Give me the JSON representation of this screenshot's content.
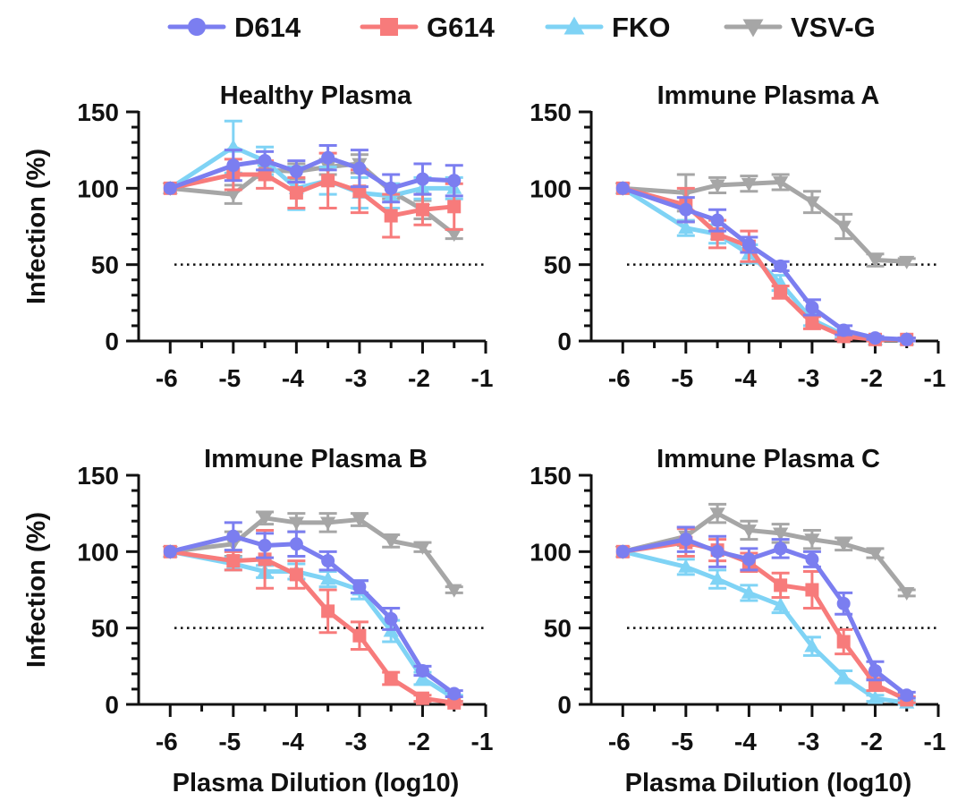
{
  "legend": [
    {
      "name": "D614",
      "color": "#7b7ef0",
      "marker": "circle"
    },
    {
      "name": "G614",
      "color": "#f77b7b",
      "marker": "square"
    },
    {
      "name": "FKO",
      "color": "#7fd3f5",
      "marker": "triangle-up"
    },
    {
      "name": "VSV-G",
      "color": "#a6a6a6",
      "marker": "triangle-down"
    }
  ],
  "colors": {
    "D614": "#7b7ef0",
    "G614": "#f77b7b",
    "FKO": "#7fd3f5",
    "VSV-G": "#a6a6a6",
    "axis": "#111111"
  },
  "chart_data": [
    {
      "type": "line",
      "title": "Healthy Plasma",
      "xlabel": "",
      "ylabel": "Infection (%)",
      "xlim": [
        -6.5,
        -1
      ],
      "ylim": [
        0,
        150
      ],
      "xticks": [
        -6,
        -5,
        -4,
        -3,
        -2,
        -1
      ],
      "yticks": [
        0,
        50,
        100,
        150
      ],
      "reference_line": 50,
      "x": [
        -6,
        -5,
        -4.5,
        -4,
        -3.5,
        -3,
        -2.5,
        -2,
        -1.5
      ],
      "series": [
        {
          "name": "D614",
          "values": [
            100,
            115,
            118,
            111,
            120,
            113,
            100,
            106,
            105
          ],
          "error": [
            0,
            10,
            6,
            7,
            8,
            12,
            9,
            10,
            10
          ]
        },
        {
          "name": "G614",
          "values": [
            100,
            109,
            109,
            97,
            105,
            98,
            82,
            86,
            88
          ],
          "error": [
            0,
            10,
            9,
            10,
            18,
            14,
            14,
            10,
            15
          ]
        },
        {
          "name": "FKO",
          "values": [
            100,
            127,
            118,
            100,
            105,
            97,
            95,
            100,
            100
          ],
          "error": [
            0,
            17,
            9,
            14,
            9,
            10,
            8,
            7,
            7
          ]
        },
        {
          "name": "VSV-G",
          "values": [
            100,
            96,
            112,
            111,
            114,
            116,
            98,
            86,
            70
          ],
          "error": [
            0,
            6,
            5,
            5,
            5,
            6,
            5,
            6,
            3
          ]
        }
      ]
    },
    {
      "type": "line",
      "title": "Immune Plasma A",
      "xlabel": "",
      "ylabel": "",
      "xlim": [
        -6.5,
        -1
      ],
      "ylim": [
        0,
        150
      ],
      "xticks": [
        -6,
        -5,
        -4,
        -3,
        -2,
        -1
      ],
      "yticks": [
        0,
        50,
        100,
        150
      ],
      "reference_line": 50,
      "x": [
        -6,
        -5,
        -4.5,
        -4,
        -3.5,
        -3,
        -2.5,
        -2,
        -1.5
      ],
      "series": [
        {
          "name": "D614",
          "values": [
            100,
            86,
            79,
            63,
            49,
            22,
            7,
            2,
            1
          ],
          "error": [
            0,
            8,
            7,
            5,
            3,
            5,
            3,
            1,
            1
          ]
        },
        {
          "name": "G614",
          "values": [
            100,
            89,
            70,
            62,
            32,
            12,
            3,
            1,
            1
          ],
          "error": [
            0,
            11,
            9,
            10,
            4,
            4,
            2,
            1,
            1
          ]
        },
        {
          "name": "FKO",
          "values": [
            100,
            74,
            70,
            57,
            38,
            14,
            4,
            1,
            1
          ],
          "error": [
            0,
            5,
            6,
            6,
            5,
            4,
            2,
            1,
            1
          ]
        },
        {
          "name": "VSV-G",
          "values": [
            100,
            97,
            102,
            103,
            104,
            91,
            75,
            53,
            52
          ],
          "error": [
            0,
            12,
            5,
            5,
            5,
            7,
            8,
            4,
            2
          ]
        }
      ]
    },
    {
      "type": "line",
      "title": "Immune Plasma B",
      "xlabel": "Plasma Dilution (log10)",
      "ylabel": "Infection (%)",
      "xlim": [
        -6.5,
        -1
      ],
      "ylim": [
        0,
        150
      ],
      "xticks": [
        -6,
        -5,
        -4,
        -3,
        -2,
        -1
      ],
      "yticks": [
        0,
        50,
        100,
        150
      ],
      "reference_line": 50,
      "x": [
        -6,
        -5,
        -4.5,
        -4,
        -3.5,
        -3,
        -2.5,
        -2,
        -1.5
      ],
      "series": [
        {
          "name": "D614",
          "values": [
            100,
            110,
            104,
            105,
            94,
            77,
            56,
            22,
            7
          ],
          "error": [
            0,
            9,
            8,
            8,
            6,
            4,
            7,
            3,
            2
          ]
        },
        {
          "name": "G614",
          "values": [
            100,
            94,
            95,
            85,
            61,
            45,
            17,
            4,
            1
          ],
          "error": [
            0,
            6,
            19,
            9,
            14,
            9,
            4,
            2,
            1
          ]
        },
        {
          "name": "FKO",
          "values": [
            100,
            92,
            87,
            87,
            82,
            75,
            48,
            17,
            4
          ],
          "error": [
            0,
            4,
            4,
            5,
            5,
            6,
            7,
            4,
            2
          ]
        },
        {
          "name": "VSV-G",
          "values": [
            100,
            105,
            122,
            119,
            119,
            121,
            107,
            103,
            75
          ],
          "error": [
            0,
            8,
            4,
            6,
            6,
            4,
            4,
            3,
            2
          ]
        }
      ]
    },
    {
      "type": "line",
      "title": "Immune Plasma C",
      "xlabel": "Plasma Dilution (log10)",
      "ylabel": "",
      "xlim": [
        -6.5,
        -1
      ],
      "ylim": [
        0,
        150
      ],
      "xticks": [
        -6,
        -5,
        -4,
        -3,
        -2,
        -1
      ],
      "yticks": [
        0,
        50,
        100,
        150
      ],
      "reference_line": 50,
      "x": [
        -6,
        -5,
        -4.5,
        -4,
        -3.5,
        -3,
        -2.5,
        -2,
        -1.5
      ],
      "series": [
        {
          "name": "D614",
          "values": [
            100,
            108,
            100,
            95,
            102,
            95,
            66,
            22,
            6
          ],
          "error": [
            0,
            8,
            10,
            7,
            6,
            5,
            7,
            6,
            2
          ]
        },
        {
          "name": "G614",
          "values": [
            100,
            106,
            101,
            93,
            78,
            75,
            41,
            13,
            3
          ],
          "error": [
            0,
            9,
            7,
            6,
            8,
            12,
            8,
            4,
            2
          ]
        },
        {
          "name": "FKO",
          "values": [
            100,
            90,
            82,
            73,
            65,
            38,
            18,
            4,
            1
          ],
          "error": [
            0,
            5,
            6,
            5,
            5,
            6,
            4,
            2,
            1
          ]
        },
        {
          "name": "VSV-G",
          "values": [
            100,
            110,
            125,
            114,
            112,
            108,
            105,
            99,
            73
          ],
          "error": [
            0,
            6,
            6,
            6,
            6,
            6,
            4,
            3,
            2
          ]
        }
      ]
    }
  ]
}
